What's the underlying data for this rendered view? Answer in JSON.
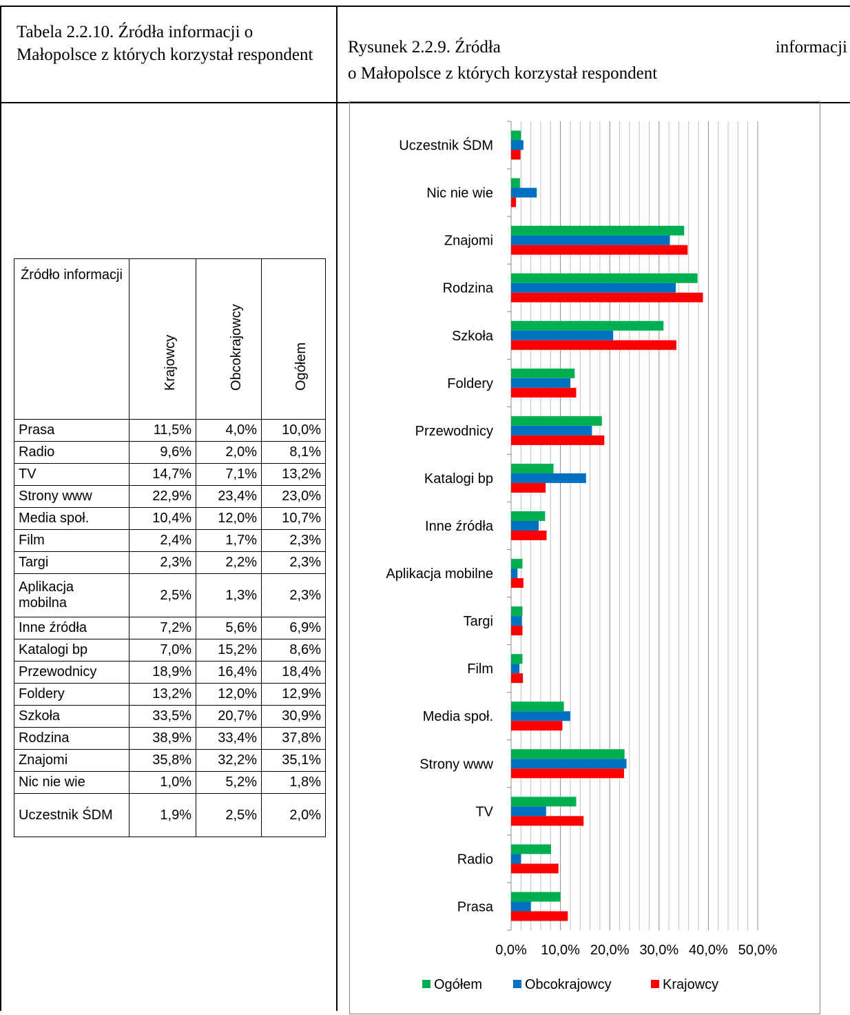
{
  "left_title": "Tabela 2.2.10. Źródła informacji o Małopolsce z których korzystał respondent",
  "right_title": {
    "line1_left": "Rysunek 2.2.9. Źródła",
    "line1_right": "informacji",
    "line2": "o Małopolsce z których korzystał respondent"
  },
  "table": {
    "headers": [
      "Źródło informacji",
      "Krajowcy",
      "Obcokrajowcy",
      "Ogółem"
    ],
    "rows": [
      [
        "Prasa",
        "11,5%",
        "4,0%",
        "10,0%"
      ],
      [
        "Radio",
        "9,6%",
        "2,0%",
        "8,1%"
      ],
      [
        "TV",
        "14,7%",
        "7,1%",
        "13,2%"
      ],
      [
        "Strony www",
        "22,9%",
        "23,4%",
        "23,0%"
      ],
      [
        "Media społ.",
        "10,4%",
        "12,0%",
        "10,7%"
      ],
      [
        "Film",
        "2,4%",
        "1,7%",
        "2,3%"
      ],
      [
        "Targi",
        "2,3%",
        "2,2%",
        "2,3%"
      ],
      [
        "Aplikacja mobilna",
        "2,5%",
        "1,3%",
        "2,3%"
      ],
      [
        "Inne źródła",
        "7,2%",
        "5,6%",
        "6,9%"
      ],
      [
        "Katalogi bp",
        "7,0%",
        "15,2%",
        "8,6%"
      ],
      [
        "Przewodnicy",
        "18,9%",
        "16,4%",
        "18,4%"
      ],
      [
        "Foldery",
        "13,2%",
        "12,0%",
        "12,9%"
      ],
      [
        "Szkoła",
        "33,5%",
        "20,7%",
        "30,9%"
      ],
      [
        "Rodzina",
        "38,9%",
        "33,4%",
        "37,8%"
      ],
      [
        "Znajomi",
        "35,8%",
        "32,2%",
        "35,1%"
      ],
      [
        "Nic nie wie",
        "1,0%",
        "5,2%",
        "1,8%"
      ],
      [
        "Uczestnik ŚDM",
        "1,9%",
        "2,5%",
        "2,0%"
      ]
    ]
  },
  "chart_data": {
    "type": "bar",
    "orientation": "horizontal",
    "categories": [
      "Uczestnik ŚDM",
      "Nic nie wie",
      "Znajomi",
      "Rodzina",
      "Szkoła",
      "Foldery",
      "Przewodnicy",
      "Katalogi bp",
      "Inne źródła",
      "Aplikacja mobilne",
      "Targi",
      "Film",
      "Media społ.",
      "Strony www",
      "TV",
      "Radio",
      "Prasa"
    ],
    "series": [
      {
        "name": "Ogółem",
        "color": "#00b050",
        "values": [
          2.0,
          1.8,
          35.1,
          37.8,
          30.9,
          12.9,
          18.4,
          8.6,
          6.9,
          2.3,
          2.3,
          2.3,
          10.7,
          23.0,
          13.2,
          8.1,
          10.0
        ]
      },
      {
        "name": "Obcokrajowcy",
        "color": "#0070c0",
        "values": [
          2.5,
          5.2,
          32.2,
          33.4,
          20.7,
          12.0,
          16.4,
          15.2,
          5.6,
          1.3,
          2.2,
          1.7,
          12.0,
          23.4,
          7.1,
          2.0,
          4.0
        ]
      },
      {
        "name": "Krajowcy",
        "color": "#ff0000",
        "values": [
          1.9,
          1.0,
          35.8,
          38.9,
          33.5,
          13.2,
          18.9,
          7.0,
          7.2,
          2.5,
          2.3,
          2.4,
          10.4,
          22.9,
          14.7,
          9.6,
          11.5
        ]
      }
    ],
    "xlim": [
      0,
      50
    ],
    "x_ticks": [
      "0,0%",
      "10,0%",
      "20,0%",
      "30,0%",
      "40,0%",
      "50,0%"
    ],
    "minor_grid_step": 2,
    "grid": true,
    "legend_position": "bottom"
  }
}
